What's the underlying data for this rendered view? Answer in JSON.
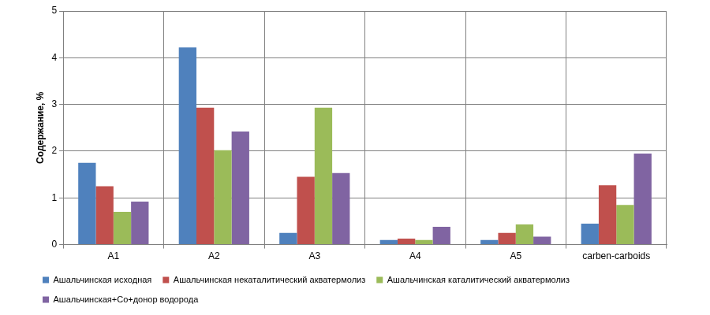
{
  "chart_data": {
    "type": "bar",
    "ylabel": "Содержание, %",
    "categories": [
      "A1",
      "A2",
      "A3",
      "A4",
      "A5",
      "carben-carboids"
    ],
    "series": [
      {
        "name": "Ашальчинская исходная",
        "color": "#4f81bd",
        "values": [
          1.75,
          4.22,
          0.25,
          0.1,
          0.1,
          0.45
        ]
      },
      {
        "name": "Ашальчинская некаталитический акватермолиз",
        "color": "#c0504d",
        "values": [
          1.25,
          2.93,
          1.45,
          0.13,
          0.25,
          1.27
        ]
      },
      {
        "name": "Ашальчинская каталитический акватермолиз",
        "color": "#9bbb59",
        "values": [
          0.7,
          2.02,
          2.93,
          0.1,
          0.43,
          0.85
        ]
      },
      {
        "name": "Ашальчинская+Co+донор водорода",
        "color": "#8064a2",
        "values": [
          0.92,
          2.42,
          1.53,
          0.38,
          0.17,
          1.95
        ]
      }
    ],
    "ylim": [
      0,
      5
    ],
    "yticks": [
      0,
      1,
      2,
      3,
      4,
      5
    ],
    "grid": true,
    "legend": "bottom"
  }
}
